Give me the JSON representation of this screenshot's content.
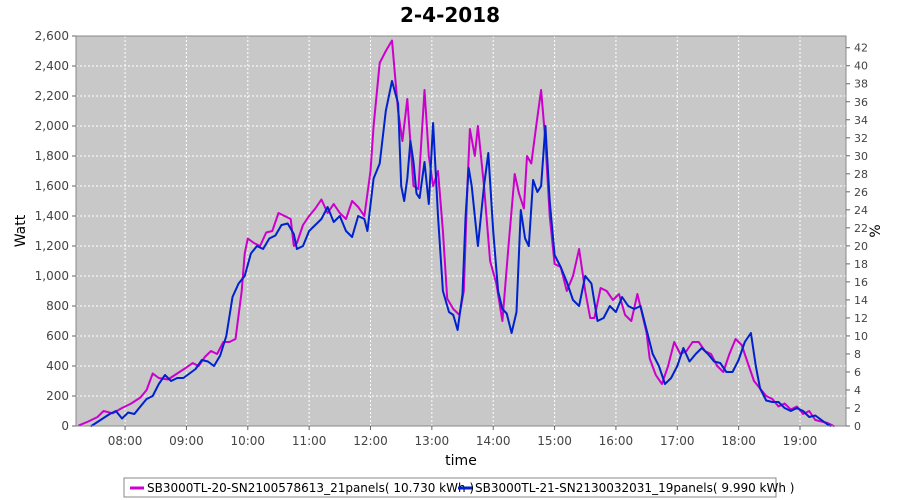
{
  "chart_data": {
    "type": "line",
    "title": "2-4-2018",
    "xlabel": "time",
    "ylabel": "Watt",
    "y2label": "%",
    "xlim": [
      7.2,
      19.75
    ],
    "ylim": [
      0,
      2600
    ],
    "y2lim": [
      0,
      43.3
    ],
    "grid": true,
    "legend_position": "bottom",
    "x_ticks": [
      {
        "v": 8,
        "label": "08:00"
      },
      {
        "v": 9,
        "label": "09:00"
      },
      {
        "v": 10,
        "label": "10:00"
      },
      {
        "v": 11,
        "label": "11:00"
      },
      {
        "v": 12,
        "label": "12:00"
      },
      {
        "v": 13,
        "label": "13:00"
      },
      {
        "v": 14,
        "label": "14:00"
      },
      {
        "v": 15,
        "label": "15:00"
      },
      {
        "v": 16,
        "label": "16:00"
      },
      {
        "v": 17,
        "label": "17:00"
      },
      {
        "v": 18,
        "label": "18:00"
      },
      {
        "v": 19,
        "label": "19:00"
      }
    ],
    "y_ticks": [
      {
        "v": 0,
        "label": "0"
      },
      {
        "v": 200,
        "label": "200"
      },
      {
        "v": 400,
        "label": "400"
      },
      {
        "v": 600,
        "label": "600"
      },
      {
        "v": 800,
        "label": "800"
      },
      {
        "v": 1000,
        "label": "1,000"
      },
      {
        "v": 1200,
        "label": "1,200"
      },
      {
        "v": 1400,
        "label": "1,400"
      },
      {
        "v": 1600,
        "label": "1,600"
      },
      {
        "v": 1800,
        "label": "1,800"
      },
      {
        "v": 2000,
        "label": "2,000"
      },
      {
        "v": 2200,
        "label": "2,200"
      },
      {
        "v": 2400,
        "label": "2,400"
      },
      {
        "v": 2600,
        "label": "2,600"
      }
    ],
    "y2_ticks": [
      {
        "v": 0,
        "label": "0"
      },
      {
        "v": 2,
        "label": "2"
      },
      {
        "v": 4,
        "label": "4"
      },
      {
        "v": 6,
        "label": "6"
      },
      {
        "v": 8,
        "label": "8"
      },
      {
        "v": 10,
        "label": "10"
      },
      {
        "v": 12,
        "label": "12"
      },
      {
        "v": 14,
        "label": "14"
      },
      {
        "v": 16,
        "label": "16"
      },
      {
        "v": 18,
        "label": "18"
      },
      {
        "v": 20,
        "label": "20"
      },
      {
        "v": 22,
        "label": "22"
      },
      {
        "v": 24,
        "label": "24"
      },
      {
        "v": 26,
        "label": "26"
      },
      {
        "v": 28,
        "label": "28"
      },
      {
        "v": 30,
        "label": "30"
      },
      {
        "v": 32,
        "label": "32"
      },
      {
        "v": 34,
        "label": "34"
      },
      {
        "v": 36,
        "label": "36"
      },
      {
        "v": 38,
        "label": "38"
      },
      {
        "v": 40,
        "label": "40"
      },
      {
        "v": 42,
        "label": "42"
      }
    ],
    "series": [
      {
        "name": "SB3000TL-20-SN2100578613_21panels( 10.730 kWh )",
        "color": "#cc00cc",
        "points": [
          [
            7.25,
            5
          ],
          [
            7.4,
            30
          ],
          [
            7.55,
            60
          ],
          [
            7.65,
            100
          ],
          [
            7.8,
            85
          ],
          [
            7.95,
            120
          ],
          [
            8.1,
            150
          ],
          [
            8.25,
            190
          ],
          [
            8.35,
            240
          ],
          [
            8.45,
            350
          ],
          [
            8.55,
            320
          ],
          [
            8.7,
            310
          ],
          [
            8.85,
            350
          ],
          [
            9.0,
            390
          ],
          [
            9.1,
            420
          ],
          [
            9.2,
            400
          ],
          [
            9.3,
            460
          ],
          [
            9.4,
            500
          ],
          [
            9.5,
            480
          ],
          [
            9.6,
            560
          ],
          [
            9.7,
            560
          ],
          [
            9.8,
            580
          ],
          [
            9.9,
            900
          ],
          [
            9.95,
            1150
          ],
          [
            10.0,
            1250
          ],
          [
            10.1,
            1220
          ],
          [
            10.2,
            1200
          ],
          [
            10.3,
            1290
          ],
          [
            10.4,
            1300
          ],
          [
            10.5,
            1420
          ],
          [
            10.6,
            1400
          ],
          [
            10.7,
            1380
          ],
          [
            10.75,
            1200
          ],
          [
            10.8,
            1220
          ],
          [
            10.9,
            1340
          ],
          [
            11.0,
            1400
          ],
          [
            11.1,
            1450
          ],
          [
            11.2,
            1510
          ],
          [
            11.3,
            1420
          ],
          [
            11.4,
            1480
          ],
          [
            11.5,
            1420
          ],
          [
            11.6,
            1380
          ],
          [
            11.7,
            1500
          ],
          [
            11.8,
            1460
          ],
          [
            11.9,
            1400
          ],
          [
            12.0,
            1700
          ],
          [
            12.05,
            2000
          ],
          [
            12.15,
            2420
          ],
          [
            12.25,
            2500
          ],
          [
            12.35,
            2570
          ],
          [
            12.45,
            2100
          ],
          [
            12.52,
            1900
          ],
          [
            12.6,
            2180
          ],
          [
            12.7,
            1600
          ],
          [
            12.78,
            1580
          ],
          [
            12.88,
            2240
          ],
          [
            12.95,
            1800
          ],
          [
            13.02,
            1600
          ],
          [
            13.1,
            1700
          ],
          [
            13.18,
            1300
          ],
          [
            13.25,
            850
          ],
          [
            13.35,
            780
          ],
          [
            13.45,
            740
          ],
          [
            13.52,
            900
          ],
          [
            13.58,
            1600
          ],
          [
            13.62,
            1980
          ],
          [
            13.7,
            1800
          ],
          [
            13.75,
            2000
          ],
          [
            13.85,
            1600
          ],
          [
            13.95,
            1100
          ],
          [
            14.05,
            950
          ],
          [
            14.15,
            700
          ],
          [
            14.25,
            1200
          ],
          [
            14.35,
            1680
          ],
          [
            14.42,
            1550
          ],
          [
            14.5,
            1450
          ],
          [
            14.55,
            1800
          ],
          [
            14.62,
            1750
          ],
          [
            14.7,
            2000
          ],
          [
            14.78,
            2240
          ],
          [
            14.85,
            1900
          ],
          [
            14.92,
            1400
          ],
          [
            15.0,
            1080
          ],
          [
            15.1,
            1060
          ],
          [
            15.2,
            900
          ],
          [
            15.3,
            1000
          ],
          [
            15.4,
            1180
          ],
          [
            15.5,
            900
          ],
          [
            15.58,
            720
          ],
          [
            15.65,
            720
          ],
          [
            15.75,
            920
          ],
          [
            15.85,
            900
          ],
          [
            15.95,
            840
          ],
          [
            16.05,
            880
          ],
          [
            16.15,
            740
          ],
          [
            16.25,
            700
          ],
          [
            16.35,
            880
          ],
          [
            16.42,
            760
          ],
          [
            16.5,
            620
          ],
          [
            16.55,
            450
          ],
          [
            16.65,
            340
          ],
          [
            16.75,
            280
          ],
          [
            16.85,
            400
          ],
          [
            16.95,
            560
          ],
          [
            17.05,
            480
          ],
          [
            17.15,
            500
          ],
          [
            17.25,
            560
          ],
          [
            17.35,
            560
          ],
          [
            17.45,
            500
          ],
          [
            17.55,
            480
          ],
          [
            17.65,
            400
          ],
          [
            17.75,
            360
          ],
          [
            17.85,
            480
          ],
          [
            17.95,
            580
          ],
          [
            18.05,
            540
          ],
          [
            18.15,
            420
          ],
          [
            18.25,
            300
          ],
          [
            18.35,
            250
          ],
          [
            18.45,
            200
          ],
          [
            18.55,
            180
          ],
          [
            18.65,
            130
          ],
          [
            18.75,
            150
          ],
          [
            18.85,
            110
          ],
          [
            18.95,
            130
          ],
          [
            19.05,
            80
          ],
          [
            19.15,
            100
          ],
          [
            19.25,
            40
          ],
          [
            19.35,
            30
          ],
          [
            19.45,
            20
          ],
          [
            19.55,
            0
          ]
        ]
      },
      {
        "name": "SB3000TL-21-SN2130032031_19panels( 9.990 kWh )",
        "color": "#0022cc",
        "points": [
          [
            7.45,
            0
          ],
          [
            7.6,
            40
          ],
          [
            7.75,
            80
          ],
          [
            7.85,
            100
          ],
          [
            7.95,
            50
          ],
          [
            8.05,
            90
          ],
          [
            8.15,
            80
          ],
          [
            8.25,
            130
          ],
          [
            8.35,
            180
          ],
          [
            8.45,
            200
          ],
          [
            8.55,
            280
          ],
          [
            8.65,
            340
          ],
          [
            8.75,
            300
          ],
          [
            8.85,
            320
          ],
          [
            8.95,
            320
          ],
          [
            9.05,
            350
          ],
          [
            9.15,
            380
          ],
          [
            9.25,
            440
          ],
          [
            9.35,
            430
          ],
          [
            9.45,
            400
          ],
          [
            9.55,
            470
          ],
          [
            9.65,
            600
          ],
          [
            9.75,
            860
          ],
          [
            9.85,
            950
          ],
          [
            9.95,
            1000
          ],
          [
            10.05,
            1150
          ],
          [
            10.15,
            1200
          ],
          [
            10.25,
            1180
          ],
          [
            10.35,
            1250
          ],
          [
            10.45,
            1270
          ],
          [
            10.55,
            1340
          ],
          [
            10.65,
            1350
          ],
          [
            10.75,
            1280
          ],
          [
            10.8,
            1180
          ],
          [
            10.9,
            1200
          ],
          [
            11.0,
            1300
          ],
          [
            11.1,
            1340
          ],
          [
            11.2,
            1380
          ],
          [
            11.3,
            1460
          ],
          [
            11.4,
            1360
          ],
          [
            11.5,
            1400
          ],
          [
            11.6,
            1300
          ],
          [
            11.7,
            1260
          ],
          [
            11.8,
            1400
          ],
          [
            11.9,
            1380
          ],
          [
            11.95,
            1300
          ],
          [
            12.05,
            1650
          ],
          [
            12.15,
            1750
          ],
          [
            12.25,
            2100
          ],
          [
            12.35,
            2300
          ],
          [
            12.45,
            2150
          ],
          [
            12.5,
            1600
          ],
          [
            12.55,
            1500
          ],
          [
            12.6,
            1650
          ],
          [
            12.65,
            1900
          ],
          [
            12.7,
            1760
          ],
          [
            12.75,
            1550
          ],
          [
            12.8,
            1520
          ],
          [
            12.88,
            1760
          ],
          [
            12.95,
            1480
          ],
          [
            13.02,
            2020
          ],
          [
            13.1,
            1400
          ],
          [
            13.18,
            900
          ],
          [
            13.28,
            760
          ],
          [
            13.35,
            740
          ],
          [
            13.42,
            640
          ],
          [
            13.5,
            880
          ],
          [
            13.55,
            1400
          ],
          [
            13.6,
            1720
          ],
          [
            13.65,
            1600
          ],
          [
            13.75,
            1200
          ],
          [
            13.85,
            1600
          ],
          [
            13.92,
            1820
          ],
          [
            14.0,
            1300
          ],
          [
            14.08,
            900
          ],
          [
            14.15,
            780
          ],
          [
            14.22,
            750
          ],
          [
            14.3,
            620
          ],
          [
            14.38,
            760
          ],
          [
            14.45,
            1440
          ],
          [
            14.52,
            1250
          ],
          [
            14.58,
            1200
          ],
          [
            14.65,
            1640
          ],
          [
            14.72,
            1560
          ],
          [
            14.78,
            1600
          ],
          [
            14.85,
            2000
          ],
          [
            14.92,
            1500
          ],
          [
            15.0,
            1140
          ],
          [
            15.1,
            1060
          ],
          [
            15.2,
            960
          ],
          [
            15.3,
            840
          ],
          [
            15.4,
            800
          ],
          [
            15.5,
            1000
          ],
          [
            15.6,
            950
          ],
          [
            15.7,
            700
          ],
          [
            15.8,
            720
          ],
          [
            15.9,
            800
          ],
          [
            16.0,
            760
          ],
          [
            16.1,
            860
          ],
          [
            16.2,
            800
          ],
          [
            16.3,
            780
          ],
          [
            16.4,
            800
          ],
          [
            16.5,
            640
          ],
          [
            16.6,
            480
          ],
          [
            16.7,
            400
          ],
          [
            16.8,
            280
          ],
          [
            16.9,
            320
          ],
          [
            17.0,
            400
          ],
          [
            17.1,
            520
          ],
          [
            17.2,
            430
          ],
          [
            17.3,
            480
          ],
          [
            17.4,
            520
          ],
          [
            17.5,
            480
          ],
          [
            17.6,
            430
          ],
          [
            17.7,
            420
          ],
          [
            17.8,
            360
          ],
          [
            17.9,
            360
          ],
          [
            18.0,
            440
          ],
          [
            18.1,
            560
          ],
          [
            18.2,
            620
          ],
          [
            18.28,
            400
          ],
          [
            18.35,
            250
          ],
          [
            18.45,
            170
          ],
          [
            18.55,
            160
          ],
          [
            18.65,
            160
          ],
          [
            18.75,
            120
          ],
          [
            18.85,
            100
          ],
          [
            18.95,
            120
          ],
          [
            19.05,
            100
          ],
          [
            19.15,
            60
          ],
          [
            19.25,
            70
          ],
          [
            19.35,
            40
          ],
          [
            19.45,
            10
          ],
          [
            19.5,
            0
          ]
        ]
      }
    ]
  }
}
